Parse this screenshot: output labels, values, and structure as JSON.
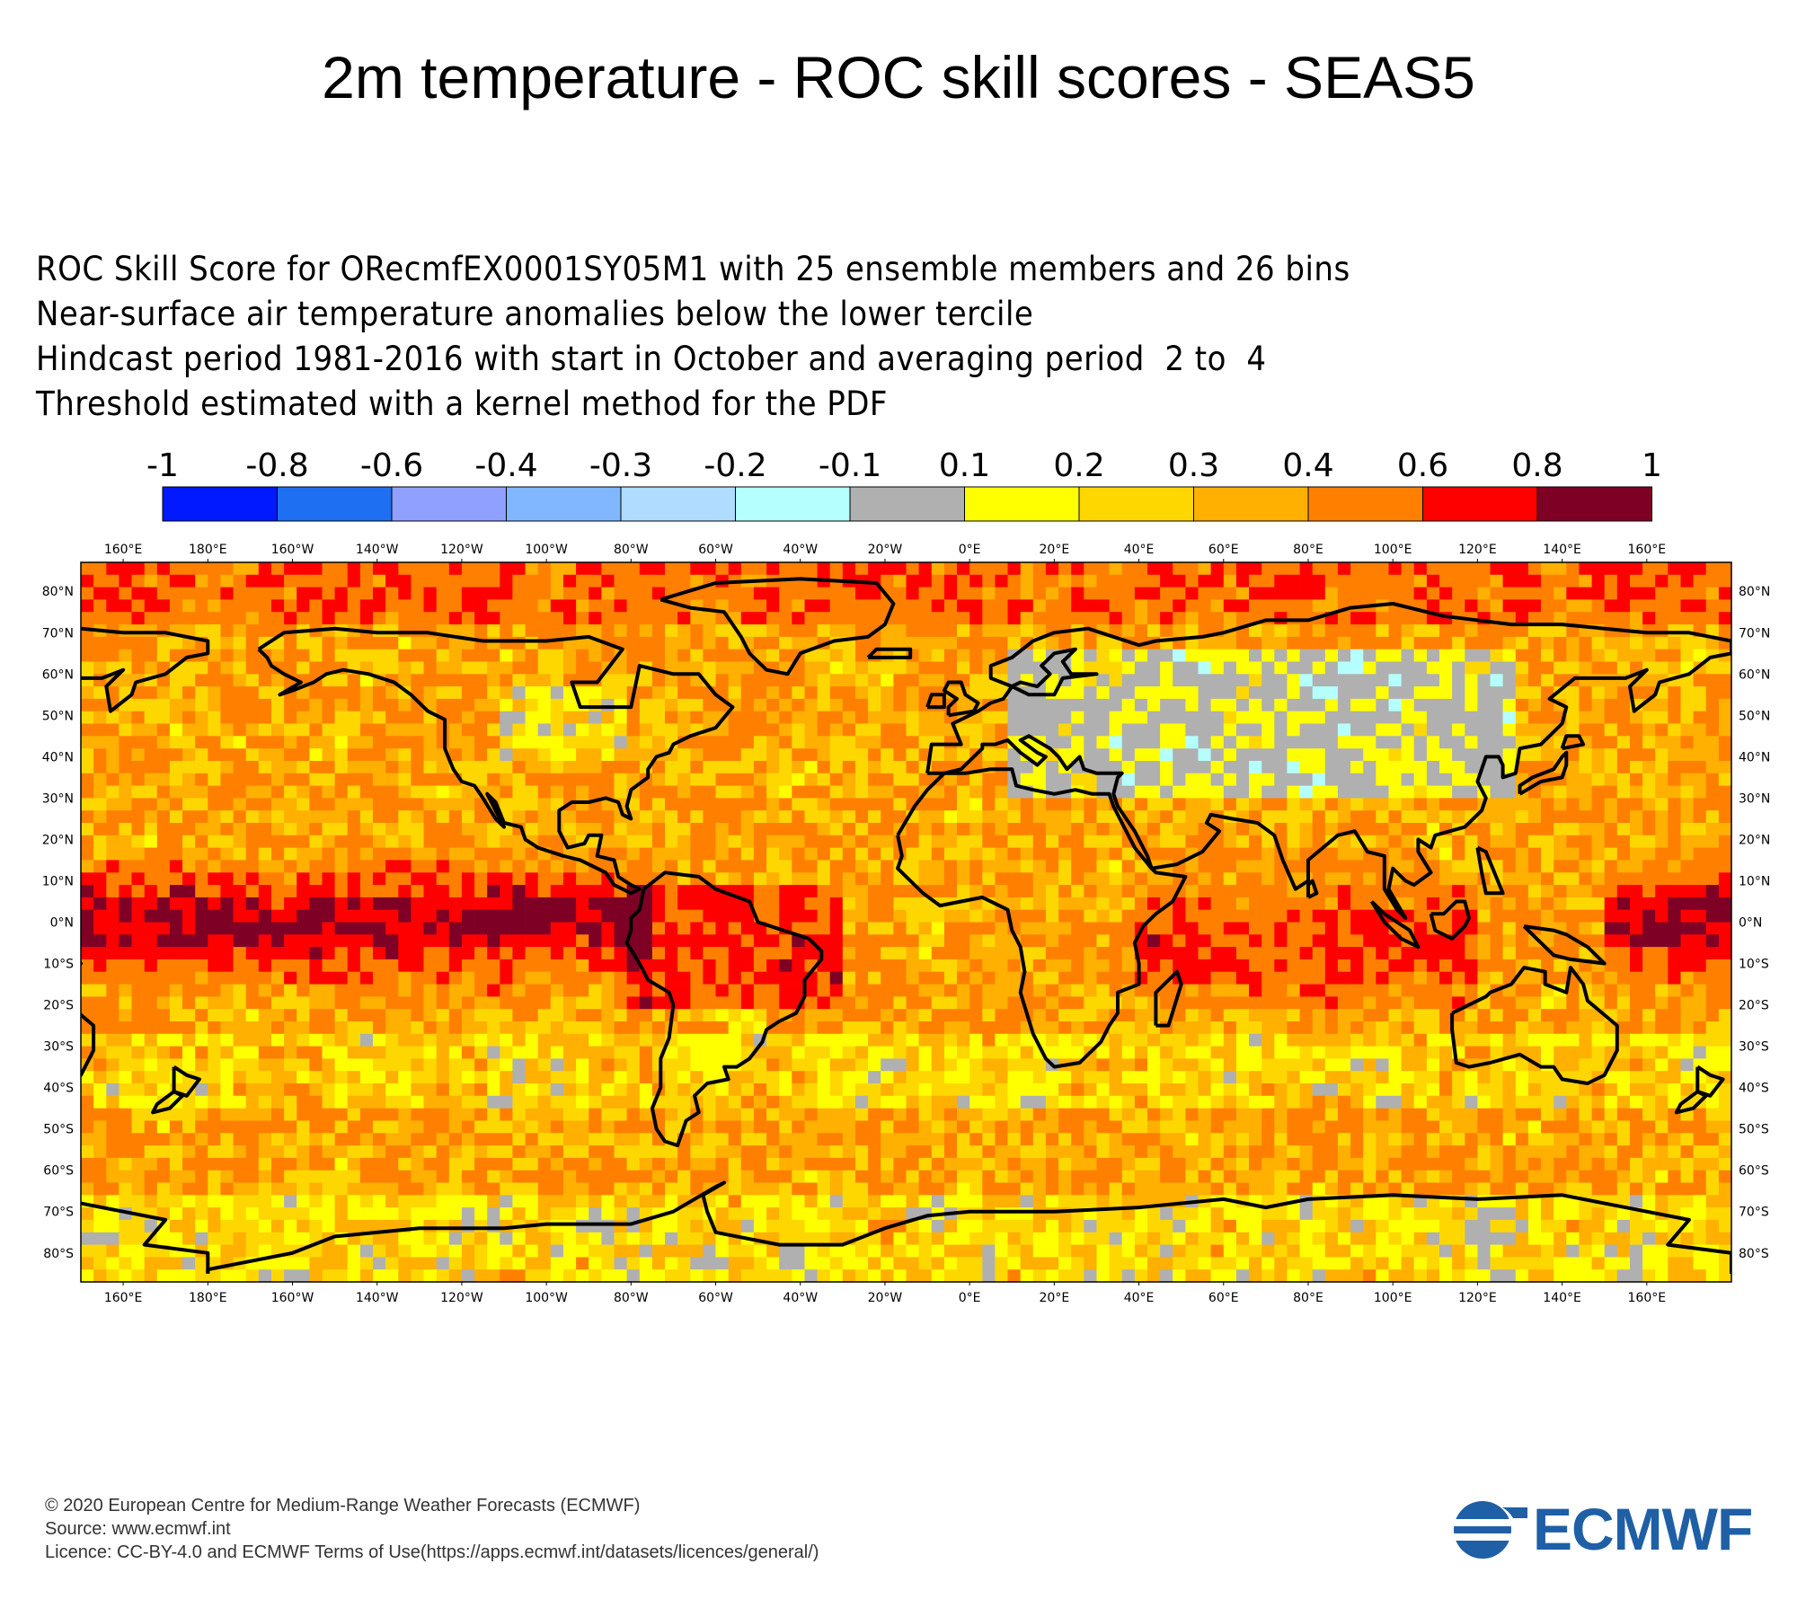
{
  "title": "2m temperature - ROC skill scores - SEAS5",
  "description_lines": [
    "ROC Skill Score for ORecmfEX0001SY05M1 with 25 ensemble members and 26 bins",
    "Near-surface air temperature anomalies below the lower tercile",
    "Hindcast period 1981-2016 with start in October and averaging period  2 to  4",
    "Threshold estimated with a kernel method for the PDF"
  ],
  "legend": {
    "boundaries": [
      "-1",
      "-0.8",
      "-0.6",
      "-0.4",
      "-0.3",
      "-0.2",
      "-0.1",
      "0.1",
      "0.2",
      "0.3",
      "0.4",
      "0.6",
      "0.8",
      "1"
    ],
    "colors": [
      "#0019ff",
      "#1e6ff2",
      "#8fa0ff",
      "#80b7ff",
      "#b0dcff",
      "#b6ffff",
      "#b0b0b0",
      "#ffff00",
      "#ffd700",
      "#ffb000",
      "#ff8000",
      "#ff0000",
      "#7f0025"
    ]
  },
  "map": {
    "lon_labels": [
      "160°E",
      "180°E",
      "160°W",
      "140°W",
      "120°W",
      "100°W",
      "80°W",
      "60°W",
      "40°W",
      "20°W",
      "0°E",
      "20°E",
      "40°E",
      "60°E",
      "80°E",
      "100°E",
      "120°E",
      "140°E",
      "160°E"
    ],
    "lat_labels": [
      "80°N",
      "70°N",
      "60°N",
      "50°N",
      "40°N",
      "30°N",
      "20°N",
      "10°N",
      "0°N",
      "10°S",
      "20°S",
      "30°S",
      "40°S",
      "50°S",
      "60°S",
      "70°S",
      "80°S"
    ],
    "lon_range": [
      -210,
      180
    ],
    "lat_range": [
      -87,
      87
    ]
  },
  "footer": {
    "line1": "© 2020 European Centre for Medium-Range Weather Forecasts (ECMWF)",
    "line2": "Source: www.ecmwf.int",
    "line3": "Licence: CC-BY-4.0 and ECMWF Terms of Use(https://apps.ecmwf.int/datasets/licences/general/)"
  },
  "logo": {
    "text": "ECMWF",
    "color": "#1f5fa6"
  }
}
